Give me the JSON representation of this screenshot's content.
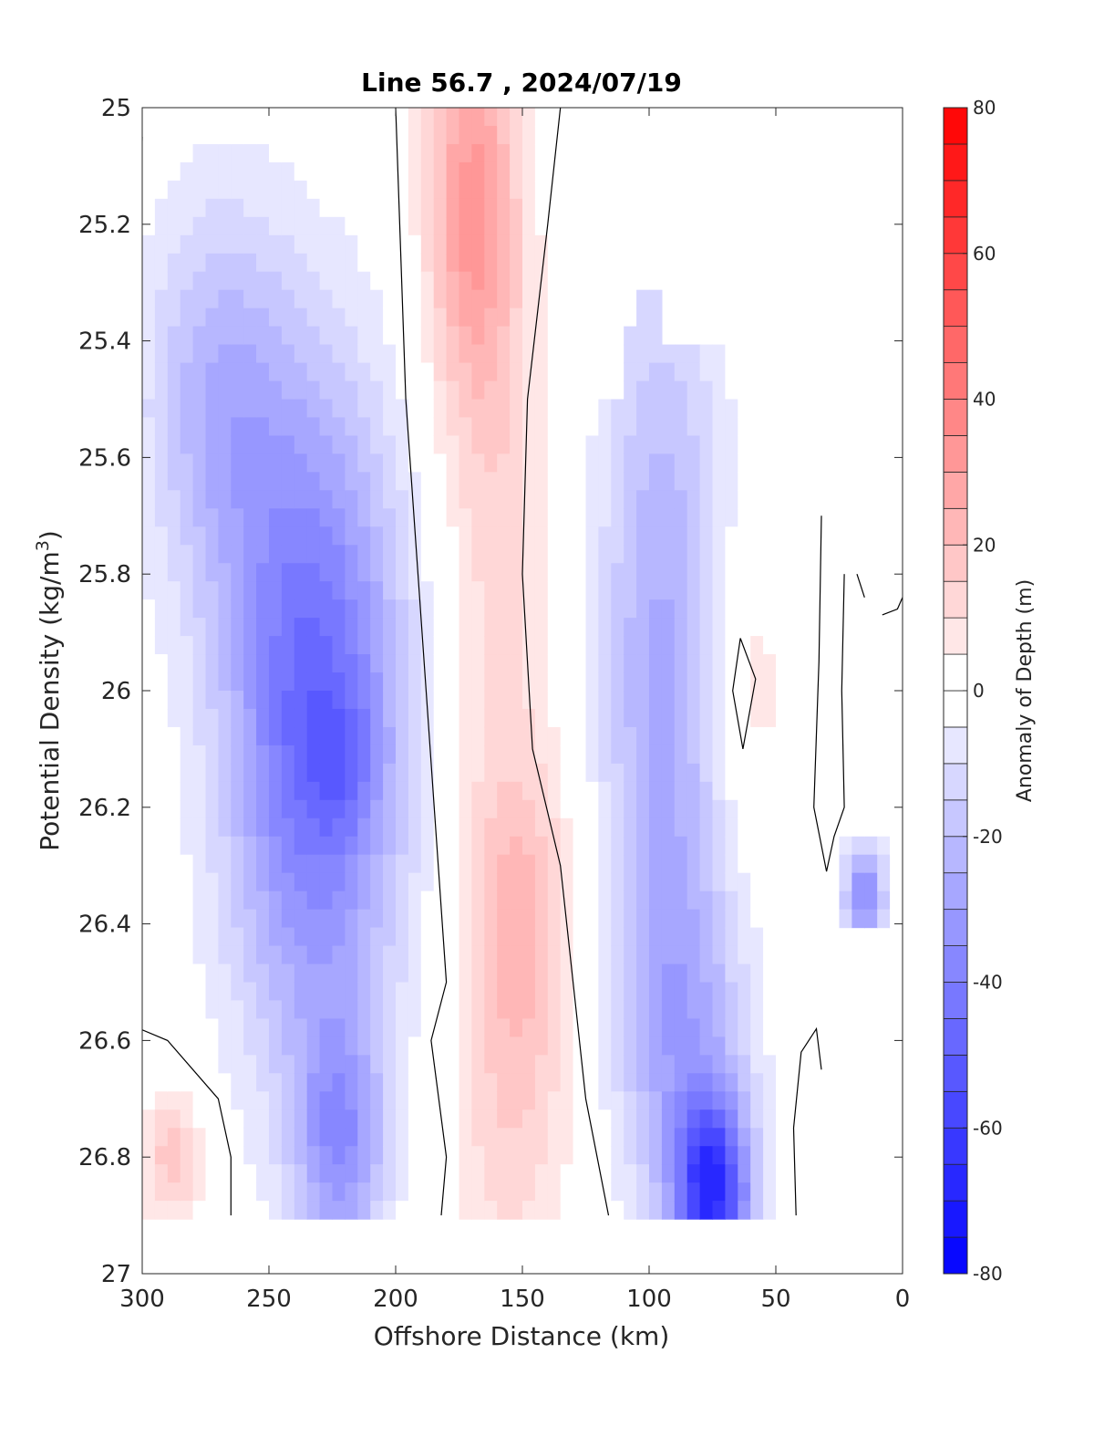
{
  "chart_data": {
    "type": "heatmap",
    "subtype": "filled-contour",
    "title": "Line 56.7 , 2024/07/19",
    "xlabel": "Offshore Distance (km)",
    "ylabel": "Potential Density (kg/m",
    "ylabel_sup": "3",
    "ylabel_close": ")",
    "colorbar_label": "Anomaly of Depth (m)",
    "xlim": [
      300,
      0
    ],
    "ylim": [
      25,
      27
    ],
    "y_reversed": true,
    "x_reversed": true,
    "x_ticks": [
      300,
      250,
      200,
      150,
      100,
      50,
      0
    ],
    "x_tick_labels": [
      "300",
      "250",
      "200",
      "150",
      "100",
      "50",
      "0"
    ],
    "y_ticks": [
      25,
      25.2,
      25.4,
      25.6,
      25.8,
      26,
      26.2,
      26.4,
      26.6,
      26.8,
      27
    ],
    "y_tick_labels": [
      "25",
      "25.2",
      "25.4",
      "25.6",
      "25.8",
      "26",
      "26.2",
      "26.4",
      "26.6",
      "26.8",
      "27"
    ],
    "colorbar_range": [
      -80,
      80
    ],
    "colorbar_step": 5,
    "colorbar_ticks": [
      80,
      60,
      40,
      20,
      0,
      -20,
      -40,
      -60,
      -80
    ],
    "colorbar_tick_labels": [
      "80",
      "60",
      "40",
      "20",
      "0",
      "-20",
      "-40",
      "-60",
      "-80"
    ],
    "colormap": {
      "negative": "#0000ff",
      "zero": "#ffffff",
      "positive": "#ff0000"
    },
    "zero_contour_color": "#000000",
    "features": [
      {
        "name": "offshore negative band",
        "x": 230,
        "y": 26.12,
        "value": -55
      },
      {
        "name": "secondary negative band",
        "x": 220,
        "y": 26.8,
        "value": -35
      },
      {
        "name": "upper positive core",
        "x": 170,
        "y": 25.15,
        "value": 33
      },
      {
        "name": "lower positive core",
        "x": 155,
        "y": 26.4,
        "value": 22
      },
      {
        "name": "nearshore negative core",
        "x": 75,
        "y": 26.87,
        "value": -72
      },
      {
        "name": "mid negative band",
        "x": 95,
        "y": 25.9,
        "value": -28
      },
      {
        "name": "offshore positive pocket",
        "x": 288,
        "y": 26.8,
        "value": 18
      },
      {
        "name": "nearshore negative pocket",
        "x": 15,
        "y": 26.35,
        "value": -40
      }
    ]
  }
}
